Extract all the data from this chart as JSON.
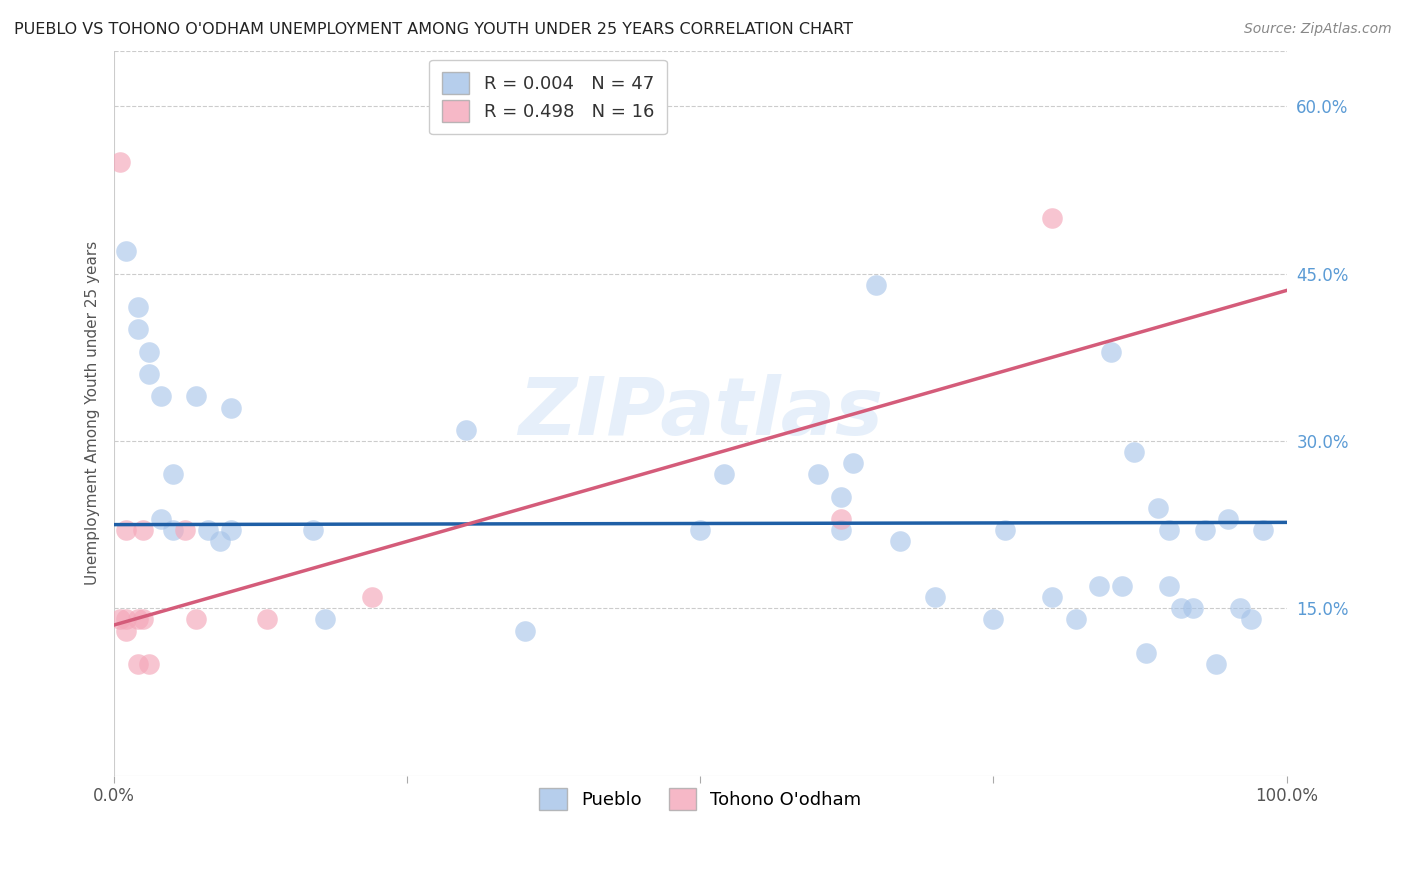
{
  "title": "PUEBLO VS TOHONO O'ODHAM UNEMPLOYMENT AMONG YOUTH UNDER 25 YEARS CORRELATION CHART",
  "source": "Source: ZipAtlas.com",
  "ylabel": "Unemployment Among Youth under 25 years",
  "xlim": [
    0,
    1.0
  ],
  "ylim": [
    0,
    0.65
  ],
  "yticks_right": [
    0.15,
    0.3,
    0.45,
    0.6
  ],
  "ytick_right_labels": [
    "15.0%",
    "30.0%",
    "45.0%",
    "60.0%"
  ],
  "legend_r1": "R = 0.004   N = 47",
  "legend_r2": "R = 0.498   N = 16",
  "legend_label1": "Pueblo",
  "legend_label2": "Tohono O'odham",
  "pueblo_color": "#a4c2e8",
  "tohono_color": "#f4a7b9",
  "trendline_pueblo_color": "#1f5fa6",
  "trendline_tohono_color": "#d45c7a",
  "background_color": "#ffffff",
  "watermark": "ZIPatlas",
  "pueblo_x": [
    0.01,
    0.02,
    0.02,
    0.03,
    0.03,
    0.04,
    0.04,
    0.05,
    0.05,
    0.07,
    0.08,
    0.09,
    0.1,
    0.1,
    0.17,
    0.18,
    0.3,
    0.35,
    0.5,
    0.52,
    0.6,
    0.62,
    0.62,
    0.63,
    0.65,
    0.67,
    0.7,
    0.75,
    0.76,
    0.8,
    0.82,
    0.84,
    0.85,
    0.86,
    0.87,
    0.88,
    0.89,
    0.9,
    0.9,
    0.91,
    0.92,
    0.93,
    0.94,
    0.95,
    0.96,
    0.97,
    0.98
  ],
  "pueblo_y": [
    0.47,
    0.42,
    0.4,
    0.38,
    0.36,
    0.34,
    0.23,
    0.27,
    0.22,
    0.34,
    0.22,
    0.21,
    0.33,
    0.22,
    0.22,
    0.14,
    0.31,
    0.13,
    0.22,
    0.27,
    0.27,
    0.25,
    0.22,
    0.28,
    0.44,
    0.21,
    0.16,
    0.14,
    0.22,
    0.16,
    0.14,
    0.17,
    0.38,
    0.17,
    0.29,
    0.11,
    0.24,
    0.17,
    0.22,
    0.15,
    0.15,
    0.22,
    0.1,
    0.23,
    0.15,
    0.14,
    0.22
  ],
  "tohono_x": [
    0.005,
    0.005,
    0.01,
    0.01,
    0.01,
    0.02,
    0.02,
    0.025,
    0.025,
    0.03,
    0.06,
    0.07,
    0.13,
    0.22,
    0.62,
    0.8
  ],
  "tohono_y": [
    0.14,
    0.55,
    0.14,
    0.13,
    0.22,
    0.14,
    0.1,
    0.14,
    0.22,
    0.1,
    0.22,
    0.14,
    0.14,
    0.16,
    0.23,
    0.5
  ],
  "pueblo_trendline_y0": 0.225,
  "pueblo_trendline_y1": 0.227,
  "tohono_trendline_x0": 0.0,
  "tohono_trendline_x1": 1.0,
  "tohono_trendline_y0": 0.135,
  "tohono_trendline_y1": 0.435
}
